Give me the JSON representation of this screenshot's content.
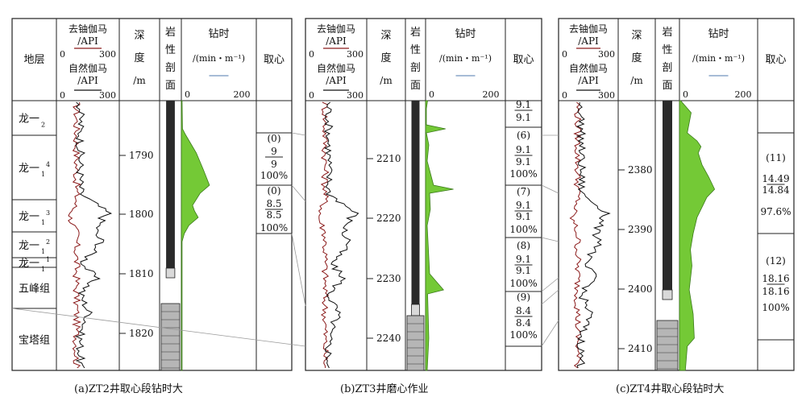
{
  "headers": {
    "strata": "地层",
    "gamma_top_title": [
      "去铀伽马",
      "/API"
    ],
    "gamma_bottom_title": [
      "自然伽马",
      "/API"
    ],
    "scale_min": "0",
    "scale_max": "300",
    "depth_title": [
      "深",
      "度",
      "/m"
    ],
    "lith_title": [
      "岩",
      "性",
      "剖",
      "面"
    ],
    "drill_title": "钻时",
    "drill_unit": "/(min・m⁻¹)",
    "drill_min": "0",
    "drill_max": "200",
    "core_title": "取心"
  },
  "colors": {
    "uranium_free_gamma": "#8b1a1a",
    "natural_gamma": "#111111",
    "drill_time_fill": "#74c936",
    "drill_legend_line": "#8aa5c8",
    "coring_zone": "#2a2a2a",
    "carbonate_block": "#b6b6b6"
  },
  "panels": [
    {
      "id": "zt2",
      "caption": "(a)ZT2井取心段钻时大",
      "strata_labels": [
        {
          "main": "龙一",
          "sub": "2",
          "sup": ""
        },
        {
          "main": "龙一",
          "sub": "1",
          "sup": "4"
        },
        {
          "main": "龙一",
          "sub": "1",
          "sup": "3"
        },
        {
          "main": "龙一",
          "sub": "1",
          "sup": "2"
        },
        {
          "main": "龙一",
          "sub": "1",
          "sup": "1"
        },
        {
          "main": "五峰组",
          "sub": "",
          "sup": ""
        },
        {
          "main": "宝塔组",
          "sub": "",
          "sup": ""
        }
      ],
      "depth_ticks": [
        "1790",
        "1800",
        "1810",
        "1820"
      ],
      "cores": [
        {
          "lines": [
            "(0)",
            "9",
            "9",
            "100%"
          ]
        },
        {
          "lines": [
            "(0)",
            "8.5",
            "8.5",
            "100%"
          ]
        }
      ]
    },
    {
      "id": "zt3",
      "caption": "(b)ZT3井磨心作业",
      "strata_labels": [],
      "depth_ticks": [
        "2210",
        "2220",
        "2230",
        "2240"
      ],
      "cores": [
        {
          "lines": [
            "9.1",
            "9.1"
          ]
        },
        {
          "lines": [
            "(6)",
            "9.1",
            "9.1",
            "100%"
          ]
        },
        {
          "lines": [
            "(7)",
            "9.1",
            "9.1",
            "100%"
          ]
        },
        {
          "lines": [
            "(8)",
            "9.1",
            "9.1",
            "100%"
          ]
        },
        {
          "lines": [
            "(9)",
            "8.4",
            "8.4",
            "100%"
          ]
        }
      ]
    },
    {
      "id": "zt4",
      "caption": "(c)ZT4井取心段钻时大",
      "strata_labels": [],
      "depth_ticks": [
        "2380",
        "2390",
        "2400",
        "2410"
      ],
      "cores": [
        {
          "lines": [
            "(11)",
            "14.49",
            "14.84",
            "97.6%"
          ]
        },
        {
          "lines": [
            "(12)",
            "18.16",
            "18.16",
            "100%"
          ]
        }
      ]
    }
  ]
}
